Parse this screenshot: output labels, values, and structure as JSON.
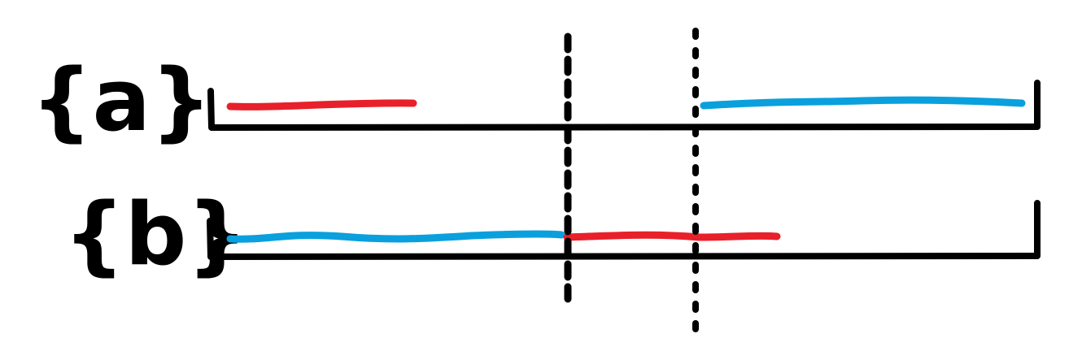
{
  "colors": {
    "red": "#e8202a",
    "blue": "#0aa0dd",
    "ink": "#000000"
  },
  "rows": [
    {
      "id": "a",
      "label": "{a}"
    },
    {
      "id": "b",
      "label": "{b}"
    }
  ]
}
